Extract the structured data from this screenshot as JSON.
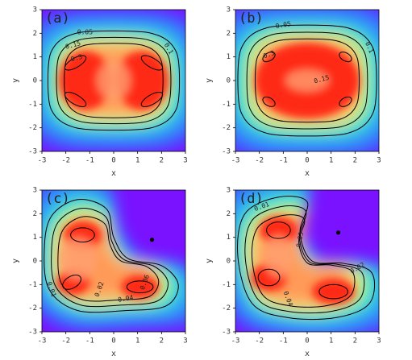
{
  "chart_data": [
    {
      "type": "contour",
      "label": "(a)",
      "xlabel": "x",
      "ylabel": "y",
      "xlim": [
        -3,
        3
      ],
      "ylim": [
        -3,
        3
      ],
      "xticks": [
        -3,
        -2,
        -1,
        0,
        1,
        2,
        3
      ],
      "yticks": [
        -3,
        -2,
        -1,
        0,
        1,
        2,
        3
      ],
      "levels": [
        0.05,
        0.1,
        0.15,
        0.3
      ]
    },
    {
      "type": "contour",
      "label": "(b)",
      "xlabel": "x",
      "ylabel": "y",
      "xlim": [
        -3,
        3
      ],
      "ylim": [
        -3,
        3
      ],
      "xticks": [
        -3,
        -2,
        -1,
        0,
        1,
        2,
        3
      ],
      "yticks": [
        -3,
        -2,
        -1,
        0,
        1,
        2,
        3
      ],
      "levels": [
        0.05,
        0.1,
        0.15,
        0.3
      ]
    },
    {
      "type": "contour",
      "label": "(c)",
      "xlabel": "x",
      "ylabel": "y",
      "xlim": [
        -3,
        3
      ],
      "ylim": [
        -3,
        3
      ],
      "xticks": [
        -3,
        -2,
        -1,
        0,
        1,
        2,
        3
      ],
      "yticks": [
        -3,
        -2,
        -1,
        0,
        1,
        2,
        3
      ],
      "levels": [
        0.01,
        0.02,
        0.04,
        0.06
      ],
      "points": {
        "x": [
          1.6
        ],
        "y": [
          0.9
        ]
      }
    },
    {
      "type": "contour",
      "label": "(d)",
      "xlabel": "x",
      "ylabel": "y",
      "xlim": [
        -3,
        3
      ],
      "ylim": [
        -3,
        3
      ],
      "xticks": [
        -3,
        -2,
        -1,
        0,
        1,
        2,
        3
      ],
      "yticks": [
        -3,
        -2,
        -1,
        0,
        1,
        2,
        3
      ],
      "levels": [
        0.01,
        0.02,
        0.03,
        0.04
      ],
      "points": {
        "x": [
          1.3
        ],
        "y": [
          1.2
        ]
      }
    }
  ]
}
